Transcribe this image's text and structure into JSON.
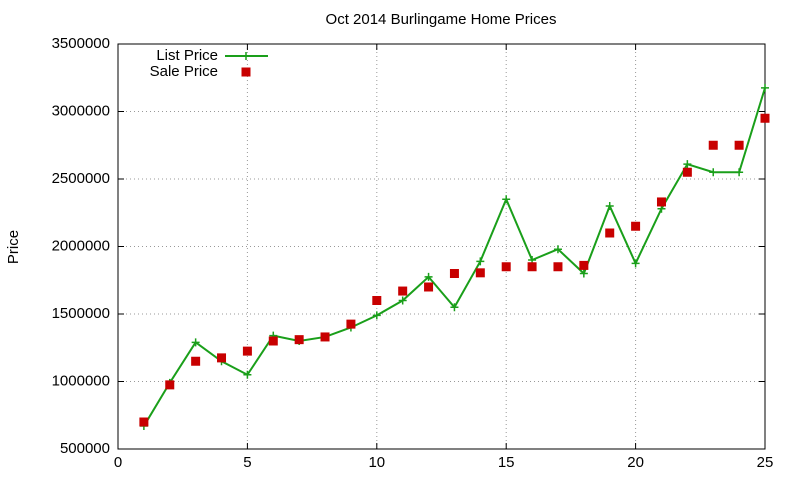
{
  "chart_data": {
    "type": "line",
    "title": "Oct 2014 Burlingame Home Prices",
    "y_label": "Price",
    "x": [
      1,
      2,
      3,
      4,
      5,
      6,
      7,
      8,
      9,
      10,
      11,
      12,
      13,
      14,
      15,
      16,
      17,
      18,
      19,
      20,
      21,
      22,
      23,
      24,
      25
    ],
    "series": [
      {
        "name": "List Price",
        "color": "#1a9f1a",
        "style": "linespoints",
        "values": [
          670000,
          990000,
          1290000,
          1150000,
          1050000,
          1340000,
          1300000,
          1330000,
          1400000,
          1490000,
          1600000,
          1775000,
          1550000,
          1890000,
          2350000,
          1900000,
          1980000,
          1800000,
          2300000,
          1875000,
          2280000,
          2610000,
          2550000,
          2550000,
          3175000
        ]
      },
      {
        "name": "Sale Price",
        "color": "#c80000",
        "style": "points",
        "values": [
          700000,
          975000,
          1150000,
          1175000,
          1225000,
          1300000,
          1310000,
          1330000,
          1425000,
          1600000,
          1670000,
          1700000,
          1800000,
          1805000,
          1850000,
          1850000,
          1850000,
          1860000,
          2100000,
          2150000,
          2330000,
          2550000,
          2750000,
          2750000,
          2950000
        ]
      }
    ],
    "xlim": [
      0,
      25
    ],
    "xticks": [
      0,
      5,
      10,
      15,
      20,
      25
    ],
    "ylim": [
      500000,
      3500000
    ],
    "yticks": [
      500000,
      1000000,
      1500000,
      2000000,
      2500000,
      3000000,
      3500000
    ],
    "grid": true,
    "legend": "top-left"
  }
}
